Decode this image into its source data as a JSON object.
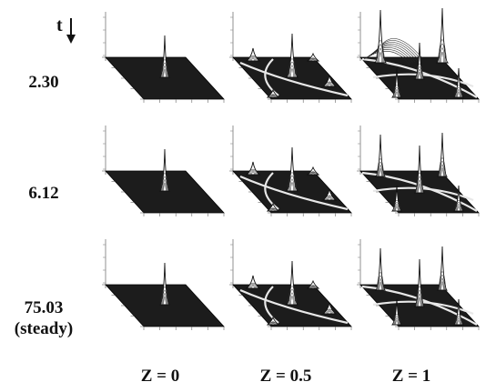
{
  "time_axis": {
    "label": "t"
  },
  "rows": [
    {
      "label": "2.30",
      "sublabel": ""
    },
    {
      "label": "6.12",
      "sublabel": ""
    },
    {
      "label": "75.03",
      "sublabel": "(steady)"
    }
  ],
  "columns": [
    {
      "label": "Z = 0"
    },
    {
      "label": "Z = 0.5"
    },
    {
      "label": "Z = 1"
    }
  ]
}
